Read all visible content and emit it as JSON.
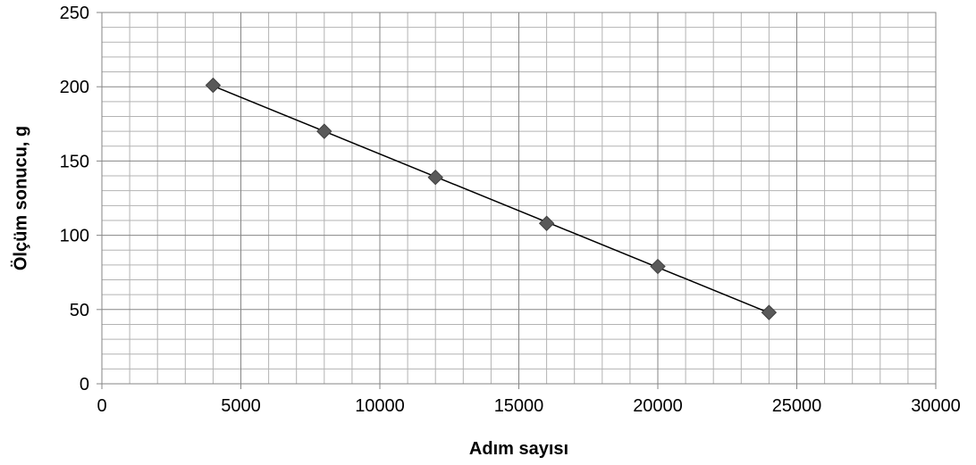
{
  "chart_data": {
    "type": "scatter",
    "title": "",
    "xlabel": "Adım sayısı",
    "ylabel": "Ölçüm sonucu, g",
    "xlim": [
      0,
      30000
    ],
    "ylim": [
      0,
      250
    ],
    "x_ticks": [
      0,
      5000,
      10000,
      15000,
      20000,
      25000,
      30000
    ],
    "y_ticks": [
      0,
      50,
      100,
      150,
      200,
      250
    ],
    "x_tick_labels": [
      "0",
      "5000",
      "10000",
      "15000",
      "20000",
      "25000",
      "30000"
    ],
    "y_tick_labels": [
      "0",
      "50",
      "100",
      "150",
      "200",
      "250"
    ],
    "grid": true,
    "legend": "none",
    "series": [
      {
        "x": [
          4000,
          8000,
          12000,
          16000,
          20000,
          24000
        ],
        "y": [
          201,
          170,
          139,
          108,
          79,
          48
        ],
        "marker": "diamond",
        "marker_color": "#595959",
        "trendline": "linear"
      }
    ],
    "trendline_color": "#000000",
    "grid_major_color": "#868686",
    "grid_minor_color": "#b3b3b3"
  }
}
